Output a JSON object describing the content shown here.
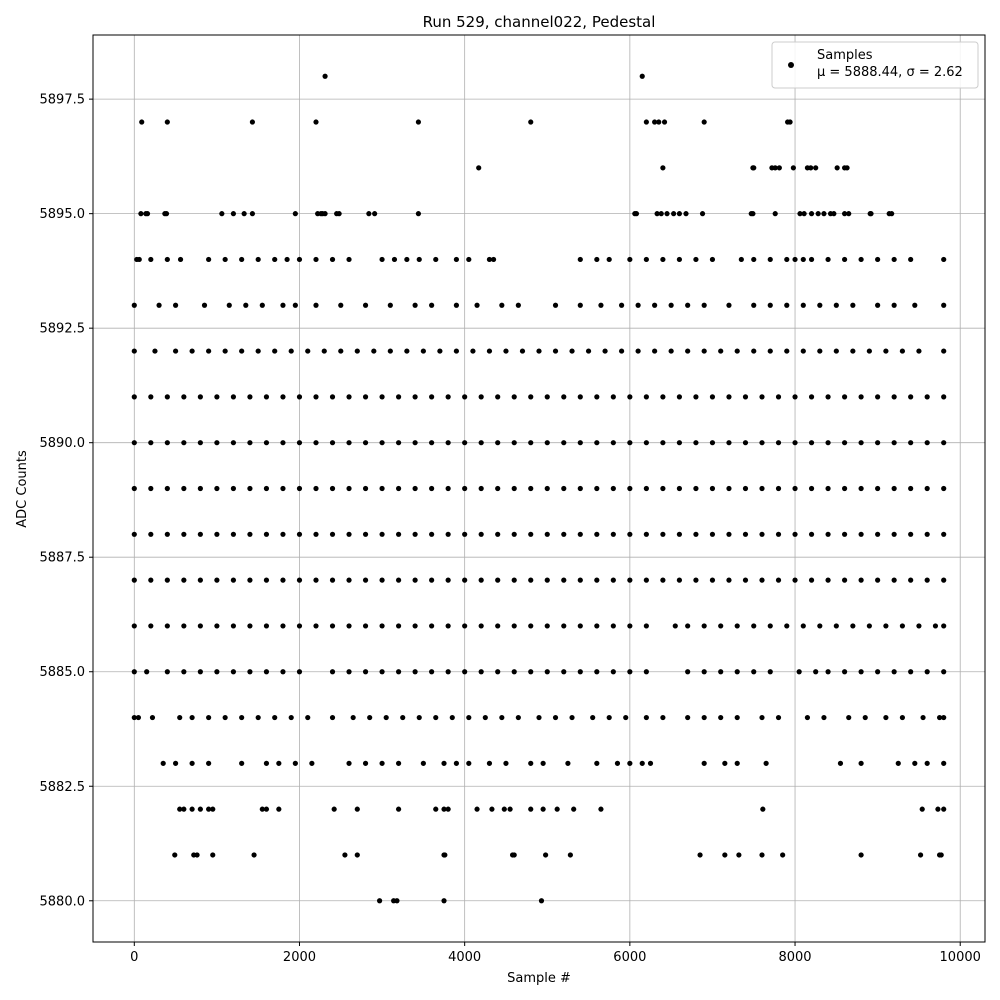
{
  "chart_data": {
    "type": "scatter",
    "title": "Run 529, channel022, Pedestal",
    "xlabel": "Sample #",
    "ylabel": "ADC Counts",
    "xlim": [
      -500,
      10300
    ],
    "ylim": [
      5879.1,
      5898.9
    ],
    "xticks": [
      0,
      2000,
      4000,
      6000,
      8000,
      10000
    ],
    "xtick_labels": [
      "0",
      "2000",
      "4000",
      "6000",
      "8000",
      "10000"
    ],
    "yticks": [
      5880.0,
      5882.5,
      5885.0,
      5887.5,
      5890.0,
      5892.5,
      5895.0,
      5897.5
    ],
    "ytick_labels": [
      "5880.0",
      "5882.5",
      "5885.0",
      "5887.5",
      "5890.0",
      "5892.5",
      "5895.0",
      "5897.5"
    ],
    "grid": true,
    "legend": {
      "placement": "top-right",
      "series_label": "Samples",
      "stats_label": "μ = 5888.44, σ = 2.62"
    },
    "marker_color": "#000000",
    "sample_count": 9850,
    "series": [
      {
        "name": "Samples",
        "levels": [
          {
            "y": 5898,
            "x": [
              2310,
              6150
            ]
          },
          {
            "y": 5897,
            "x": [
              90,
              400,
              1430,
              2200,
              3440,
              4800,
              6200,
              6300,
              6350,
              6420,
              6900,
              7910,
              7940
            ]
          },
          {
            "y": 5896,
            "x": [
              4170,
              6400,
              7490,
              7500,
              7720,
              7760,
              7810,
              7980,
              8150,
              8190,
              8250,
              8510,
              8600,
              8630
            ]
          },
          {
            "y": 5895,
            "x": [
              80,
              140,
              160,
              370,
              390,
              1060,
              1200,
              1330,
              1430,
              1950,
              2220,
              2260,
              2280,
              2310,
              2450,
              2480,
              2840,
              2910,
              3440,
              6060,
              6080,
              6330,
              6380,
              6450,
              6530,
              6600,
              6680,
              6880,
              7470,
              7490,
              7760,
              8060,
              8110,
              8200,
              8280,
              8350,
              8430,
              8470,
              8600,
              8650,
              8910,
              8920,
              9140,
              9170
            ]
          },
          {
            "y": 5894,
            "x": [
              30,
              60,
              200,
              400,
              560,
              900,
              1100,
              1300,
              1500,
              1700,
              1850,
              2000,
              2200,
              2400,
              2600,
              3000,
              3150,
              3300,
              3450,
              3650,
              3900,
              4050,
              4300,
              4350,
              5400,
              5600,
              5750,
              6000,
              6200,
              6400,
              6600,
              6800,
              7000,
              7350,
              7500,
              7700,
              7900,
              8000,
              8100,
              8200,
              8400,
              8600,
              8800,
              9000,
              9200,
              9400,
              9800
            ]
          },
          {
            "y": 5893,
            "x": [
              0,
              300,
              500,
              850,
              1150,
              1350,
              1550,
              1800,
              1950,
              2200,
              2500,
              2800,
              3100,
              3400,
              3600,
              3900,
              4150,
              4450,
              4650,
              5100,
              5400,
              5650,
              5900,
              6100,
              6300,
              6500,
              6700,
              6900,
              7200,
              7500,
              7700,
              7900,
              8100,
              8300,
              8500,
              8700,
              9000,
              9200,
              9450,
              9800
            ]
          },
          {
            "y": 5892,
            "x": [
              0,
              250,
              500,
              700,
              900,
              1100,
              1300,
              1500,
              1700,
              1900,
              2100,
              2300,
              2500,
              2700,
              2900,
              3100,
              3300,
              3500,
              3700,
              3900,
              4100,
              4300,
              4500,
              4700,
              4900,
              5100,
              5300,
              5500,
              5700,
              5900,
              6100,
              6300,
              6500,
              6700,
              6900,
              7100,
              7300,
              7500,
              7700,
              7900,
              8100,
              8300,
              8500,
              8700,
              8900,
              9100,
              9300,
              9500,
              9800
            ]
          },
          {
            "y": 5891,
            "x": [
              0,
              200,
              400,
              600,
              800,
              1000,
              1200,
              1400,
              1600,
              1800,
              2000,
              2200,
              2400,
              2600,
              2800,
              3000,
              3200,
              3400,
              3600,
              3800,
              4000,
              4200,
              4400,
              4600,
              4800,
              5000,
              5200,
              5400,
              5600,
              5800,
              6000,
              6200,
              6400,
              6600,
              6800,
              7000,
              7200,
              7400,
              7600,
              7800,
              8000,
              8200,
              8400,
              8600,
              8800,
              9000,
              9200,
              9400,
              9600,
              9800
            ]
          },
          {
            "y": 5890,
            "x": [
              0,
              200,
              400,
              600,
              800,
              1000,
              1200,
              1400,
              1600,
              1800,
              2000,
              2200,
              2400,
              2600,
              2800,
              3000,
              3200,
              3400,
              3600,
              3800,
              4000,
              4200,
              4400,
              4600,
              4800,
              5000,
              5200,
              5400,
              5600,
              5800,
              6000,
              6200,
              6400,
              6600,
              6800,
              7000,
              7200,
              7400,
              7600,
              7800,
              8000,
              8200,
              8400,
              8600,
              8800,
              9000,
              9200,
              9400,
              9600,
              9800
            ]
          },
          {
            "y": 5889,
            "x": [
              0,
              200,
              400,
              600,
              800,
              1000,
              1200,
              1400,
              1600,
              1800,
              2000,
              2200,
              2400,
              2600,
              2800,
              3000,
              3200,
              3400,
              3600,
              3800,
              4000,
              4200,
              4400,
              4600,
              4800,
              5000,
              5200,
              5400,
              5600,
              5800,
              6000,
              6200,
              6400,
              6600,
              6800,
              7000,
              7200,
              7400,
              7600,
              7800,
              8000,
              8200,
              8400,
              8600,
              8800,
              9000,
              9200,
              9400,
              9600,
              9800
            ]
          },
          {
            "y": 5888,
            "x": [
              0,
              200,
              400,
              600,
              800,
              1000,
              1200,
              1400,
              1600,
              1800,
              2000,
              2200,
              2400,
              2600,
              2800,
              3000,
              3200,
              3400,
              3600,
              3800,
              4000,
              4200,
              4400,
              4600,
              4800,
              5000,
              5200,
              5400,
              5600,
              5800,
              6000,
              6200,
              6400,
              6600,
              6800,
              7000,
              7200,
              7400,
              7600,
              7800,
              8000,
              8200,
              8400,
              8600,
              8800,
              9000,
              9200,
              9400,
              9600,
              9800
            ]
          },
          {
            "y": 5887,
            "x": [
              0,
              200,
              400,
              600,
              800,
              1000,
              1200,
              1400,
              1600,
              1800,
              2000,
              2200,
              2400,
              2600,
              2800,
              3000,
              3200,
              3400,
              3600,
              3800,
              4000,
              4200,
              4400,
              4600,
              4800,
              5000,
              5200,
              5400,
              5600,
              5800,
              6000,
              6200,
              6400,
              6600,
              6800,
              7000,
              7200,
              7400,
              7600,
              7800,
              8000,
              8200,
              8400,
              8600,
              8800,
              9000,
              9200,
              9400,
              9600,
              9800
            ]
          },
          {
            "y": 5886,
            "x": [
              0,
              200,
              400,
              600,
              800,
              1000,
              1200,
              1400,
              1600,
              1800,
              2000,
              2200,
              2400,
              2600,
              2800,
              3000,
              3200,
              3400,
              3600,
              3800,
              4000,
              4200,
              4400,
              4600,
              4800,
              5000,
              5200,
              5400,
              5600,
              5800,
              6000,
              6200,
              6550,
              6700,
              6900,
              7100,
              7300,
              7500,
              7700,
              7900,
              8100,
              8300,
              8500,
              8700,
              8900,
              9100,
              9300,
              9500,
              9700,
              9800
            ]
          },
          {
            "y": 5885,
            "x": [
              0,
              150,
              400,
              600,
              800,
              1000,
              1200,
              1400,
              1600,
              1800,
              2000,
              2400,
              2600,
              2800,
              3000,
              3200,
              3400,
              3600,
              3800,
              4000,
              4200,
              4400,
              4600,
              4800,
              5000,
              5200,
              5400,
              5600,
              5800,
              6000,
              6200,
              6700,
              6900,
              7100,
              7300,
              7500,
              7700,
              8050,
              8250,
              8400,
              8600,
              8800,
              9000,
              9200,
              9400,
              9600,
              9800
            ]
          },
          {
            "y": 5884,
            "x": [
              0,
              50,
              220,
              550,
              700,
              900,
              1100,
              1300,
              1500,
              1700,
              1900,
              2100,
              2400,
              2650,
              2850,
              3050,
              3250,
              3450,
              3650,
              3850,
              4050,
              4250,
              4450,
              4650,
              4900,
              5100,
              5300,
              5550,
              5750,
              5950,
              6200,
              6400,
              6700,
              6900,
              7100,
              7300,
              7600,
              7800,
              8150,
              8350,
              8650,
              8850,
              9100,
              9300,
              9550,
              9750,
              9800
            ]
          },
          {
            "y": 5883,
            "x": [
              350,
              500,
              700,
              900,
              1300,
              1600,
              1750,
              1950,
              2150,
              2600,
              2800,
              3000,
              3200,
              3500,
              3750,
              3900,
              4050,
              4300,
              4500,
              4800,
              4950,
              5250,
              5600,
              5850,
              6000,
              6150,
              6250,
              6900,
              7150,
              7300,
              7650,
              8550,
              8800,
              9250,
              9450,
              9600,
              9800
            ]
          },
          {
            "y": 5882,
            "x": [
              550,
              600,
              700,
              800,
              900,
              950,
              1550,
              1600,
              1750,
              2420,
              2700,
              3200,
              3650,
              3750,
              3800,
              4150,
              4330,
              4480,
              4550,
              4800,
              4950,
              5120,
              5320,
              5650,
              7610,
              9540,
              9730,
              9800
            ]
          },
          {
            "y": 5881,
            "x": [
              490,
              720,
              760,
              950,
              1450,
              2550,
              2700,
              3750,
              3760,
              4580,
              4600,
              4980,
              5280,
              6850,
              7150,
              7320,
              7600,
              7850,
              8800,
              9520,
              9750,
              9770
            ]
          },
          {
            "y": 5880,
            "x": [
              2970,
              3140,
              3180,
              3750,
              4930
            ]
          }
        ]
      }
    ]
  }
}
